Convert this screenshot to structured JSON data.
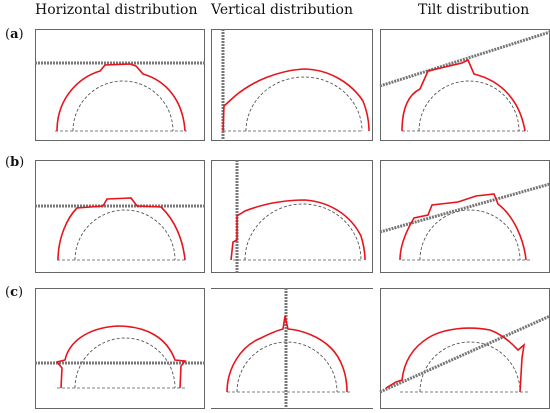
{
  "columns": [
    {
      "label": "Horizontal distribution"
    },
    {
      "label": "Vertical distribution"
    },
    {
      "label": "Tilt distribution"
    }
  ],
  "rows": [
    {
      "letter": "a"
    },
    {
      "letter": "b"
    },
    {
      "letter": "c"
    }
  ],
  "colors": {
    "profile": "#e8141c",
    "reference_circle": "#555555",
    "line": "#777777",
    "frame": "#666666"
  }
}
